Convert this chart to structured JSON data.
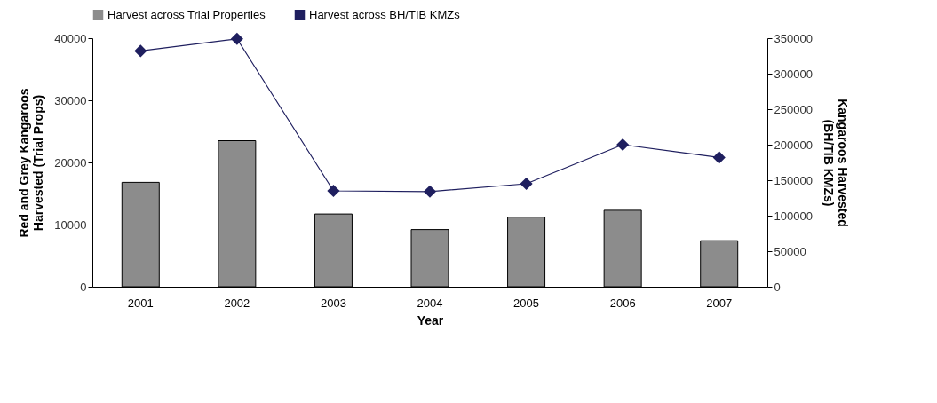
{
  "chart_data": {
    "type": "bar",
    "xlabel": "Year",
    "ylabel": "Red and Grey Kangaroos Harvested (Trial Props)",
    "y2label": "Kangaroos Harvested (BH/TIB KMZs)",
    "categories": [
      "2001",
      "2002",
      "2003",
      "2004",
      "2005",
      "2006",
      "2007"
    ],
    "series": [
      {
        "name": "Harvest across Trial Properties",
        "color": "#8c8c8c",
        "values": [
          16800,
          23500,
          11700,
          9200,
          11200,
          12300,
          7400
        ]
      },
      {
        "name": "Harvest across BH/TIB KMZs",
        "type": "line",
        "axis": "y2",
        "color": "#1f1f5f",
        "marker": "diamond",
        "values": [
          332000,
          349000,
          135000,
          134000,
          145000,
          200000,
          182000
        ]
      }
    ],
    "ylim": [
      0,
      40000
    ],
    "yticks": [
      0,
      10000,
      20000,
      30000,
      40000
    ],
    "y2lim": [
      0,
      350000
    ],
    "y2ticks": [
      0,
      50000,
      100000,
      150000,
      200000,
      250000,
      300000,
      350000
    ],
    "grid": false,
    "legend": "top"
  }
}
